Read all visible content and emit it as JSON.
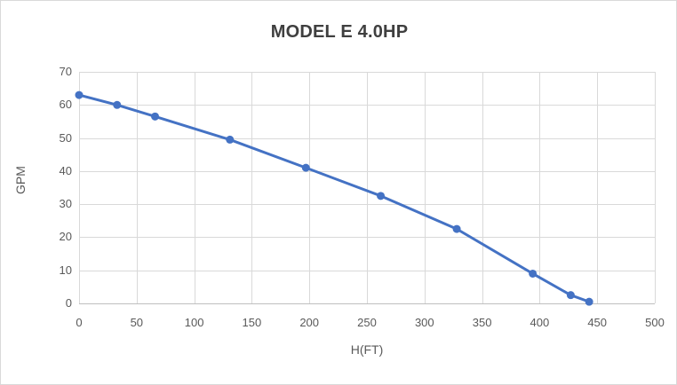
{
  "chart_data": {
    "type": "line",
    "title": "MODEL E 4.0HP",
    "xlabel": "H(FT)",
    "ylabel": "GPM",
    "x": [
      0,
      33,
      66,
      131,
      197,
      262,
      328,
      394,
      427,
      443
    ],
    "y": [
      63,
      60,
      56.5,
      49.5,
      41,
      32.5,
      22.5,
      9,
      2.5,
      0.5
    ],
    "xlim": [
      0,
      500
    ],
    "ylim": [
      0,
      70
    ],
    "x_ticks": [
      0,
      50,
      100,
      150,
      200,
      250,
      300,
      350,
      400,
      450,
      500
    ],
    "y_ticks": [
      0,
      10,
      20,
      30,
      40,
      50,
      60,
      70
    ],
    "grid": true,
    "legend": "none",
    "colors": {
      "series": "#4472C4",
      "gridline": "#d9d9d9",
      "axis_line": "#bfbfbf",
      "tick_label": "#595959",
      "axis_title": "#595959",
      "chart_title": "#3f3f3f",
      "chart_border": "#d9d9d9",
      "background": "#ffffff"
    }
  }
}
